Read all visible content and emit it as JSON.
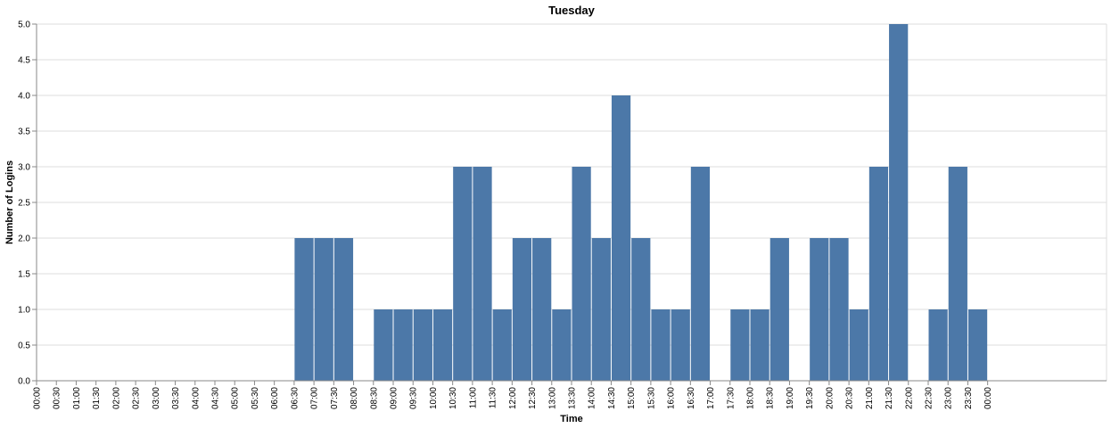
{
  "chart_data": {
    "type": "bar",
    "title": "Tuesday",
    "xlabel": "Time",
    "ylabel": "Number of Logins",
    "ylim": [
      0,
      5
    ],
    "y_ticks": [
      "0.0",
      "0.5",
      "1.0",
      "1.5",
      "2.0",
      "2.5",
      "3.0",
      "3.5",
      "4.0",
      "4.5",
      "5.0"
    ],
    "x_ticks": [
      "00:00",
      "00:30",
      "01:00",
      "01:30",
      "02:00",
      "02:30",
      "03:00",
      "03:30",
      "04:00",
      "04:30",
      "05:00",
      "05:30",
      "06:00",
      "06:30",
      "07:00",
      "07:30",
      "08:00",
      "08:30",
      "09:00",
      "09:30",
      "10:00",
      "10:30",
      "11:00",
      "11:30",
      "12:00",
      "12:30",
      "13:00",
      "13:30",
      "14:00",
      "14:30",
      "15:00",
      "15:30",
      "16:00",
      "16:30",
      "17:00",
      "17:30",
      "18:00",
      "18:30",
      "19:00",
      "19:30",
      "20:00",
      "20:30",
      "21:00",
      "21:30",
      "22:00",
      "22:30",
      "23:00",
      "23:30",
      "00:00"
    ],
    "x_domain": [
      "00:00",
      "Wed 03:00"
    ],
    "bin_minutes": 30,
    "bars": [
      {
        "start": "06:30",
        "value": 2
      },
      {
        "start": "07:00",
        "value": 2
      },
      {
        "start": "07:30",
        "value": 2
      },
      {
        "start": "08:30",
        "value": 1
      },
      {
        "start": "09:00",
        "value": 1
      },
      {
        "start": "09:30",
        "value": 1
      },
      {
        "start": "10:00",
        "value": 1
      },
      {
        "start": "10:30",
        "value": 3
      },
      {
        "start": "11:00",
        "value": 3
      },
      {
        "start": "11:30",
        "value": 1
      },
      {
        "start": "12:00",
        "value": 2
      },
      {
        "start": "12:30",
        "value": 2
      },
      {
        "start": "13:00",
        "value": 1
      },
      {
        "start": "13:30",
        "value": 3
      },
      {
        "start": "14:00",
        "value": 2
      },
      {
        "start": "14:30",
        "value": 4
      },
      {
        "start": "15:00",
        "value": 2
      },
      {
        "start": "15:30",
        "value": 1
      },
      {
        "start": "16:00",
        "value": 1
      },
      {
        "start": "16:30",
        "value": 3
      },
      {
        "start": "17:30",
        "value": 1
      },
      {
        "start": "18:00",
        "value": 1
      },
      {
        "start": "18:30",
        "value": 2
      },
      {
        "start": "19:30",
        "value": 2
      },
      {
        "start": "20:00",
        "value": 2
      },
      {
        "start": "20:30",
        "value": 1
      },
      {
        "start": "21:00",
        "value": 3
      },
      {
        "start": "21:30",
        "value": 5
      },
      {
        "start": "22:30",
        "value": 1
      },
      {
        "start": "23:00",
        "value": 3
      },
      {
        "start": "23:30",
        "value": 1
      }
    ],
    "grid": true,
    "legend": "none",
    "bar_color": "#4c78a8",
    "grid_color": "#dddddd",
    "axis_color": "#888888"
  }
}
